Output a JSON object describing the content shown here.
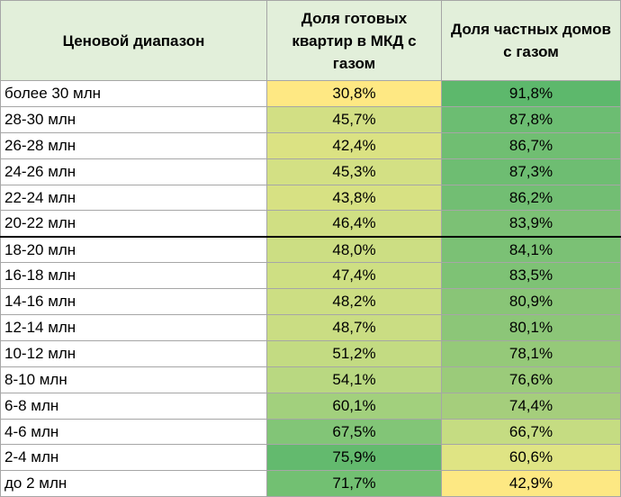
{
  "table": {
    "headers": [
      "Ценовой диапазон",
      "Доля готовых квартир в МКД с газом",
      "Доля частных домов с газом"
    ],
    "rows": [
      {
        "range": "более 30 млн",
        "flat": "30,8%",
        "house": "91,8%",
        "flat_color": "#fee883",
        "house_color": "#5db86c"
      },
      {
        "range": "28-30 млн",
        "flat": "45,7%",
        "house": "87,8%",
        "flat_color": "#d2df84",
        "house_color": "#6cbd72"
      },
      {
        "range": "26-28 млн",
        "flat": "42,4%",
        "house": "86,7%",
        "flat_color": "#dbe283",
        "house_color": "#70be72"
      },
      {
        "range": "24-26 млн",
        "flat": "45,3%",
        "house": "87,3%",
        "flat_color": "#d3e084",
        "house_color": "#6ebd72"
      },
      {
        "range": "22-24 млн",
        "flat": "43,8%",
        "house": "86,2%",
        "flat_color": "#d7e183",
        "house_color": "#72be73"
      },
      {
        "range": "20-22 млн",
        "flat": "46,4%",
        "house": "83,9%",
        "flat_color": "#d0df83",
        "house_color": "#7cc175"
      },
      {
        "range": "18-20 млн",
        "flat": "48,0%",
        "house": "84,1%",
        "flat_color": "#ccde83",
        "house_color": "#7bc175"
      },
      {
        "range": "16-18 млн",
        "flat": "47,4%",
        "house": "83,5%",
        "flat_color": "#cedf83",
        "house_color": "#7ec275"
      },
      {
        "range": "14-16 млн",
        "flat": "48,2%",
        "house": "80,9%",
        "flat_color": "#ccde83",
        "house_color": "#89c577"
      },
      {
        "range": "12-14 млн",
        "flat": "48,7%",
        "house": "80,1%",
        "flat_color": "#cadd83",
        "house_color": "#8cc678"
      },
      {
        "range": "10-12 млн",
        "flat": "51,2%",
        "house": "78,1%",
        "flat_color": "#c3db82",
        "house_color": "#95c979"
      },
      {
        "range": "8-10 млн",
        "flat": "54,1%",
        "house": "76,6%",
        "flat_color": "#b9d881",
        "house_color": "#9bcb7a"
      },
      {
        "range": "6-8 млн",
        "flat": "60,1%",
        "house": "74,4%",
        "flat_color": "#a2d07d",
        "house_color": "#a5ce7c"
      },
      {
        "range": "4-6 млн",
        "flat": "67,5%",
        "house": "66,7%",
        "flat_color": "#82c577",
        "house_color": "#c5dc82"
      },
      {
        "range": "2-4 млн",
        "flat": "75,9%",
        "house": "60,6%",
        "flat_color": "#63ba6e",
        "house_color": "#dfe484"
      },
      {
        "range": "до 2 млн",
        "flat": "71,7%",
        "house": "42,9%",
        "flat_color": "#72c072",
        "house_color": "#fde883"
      }
    ]
  }
}
